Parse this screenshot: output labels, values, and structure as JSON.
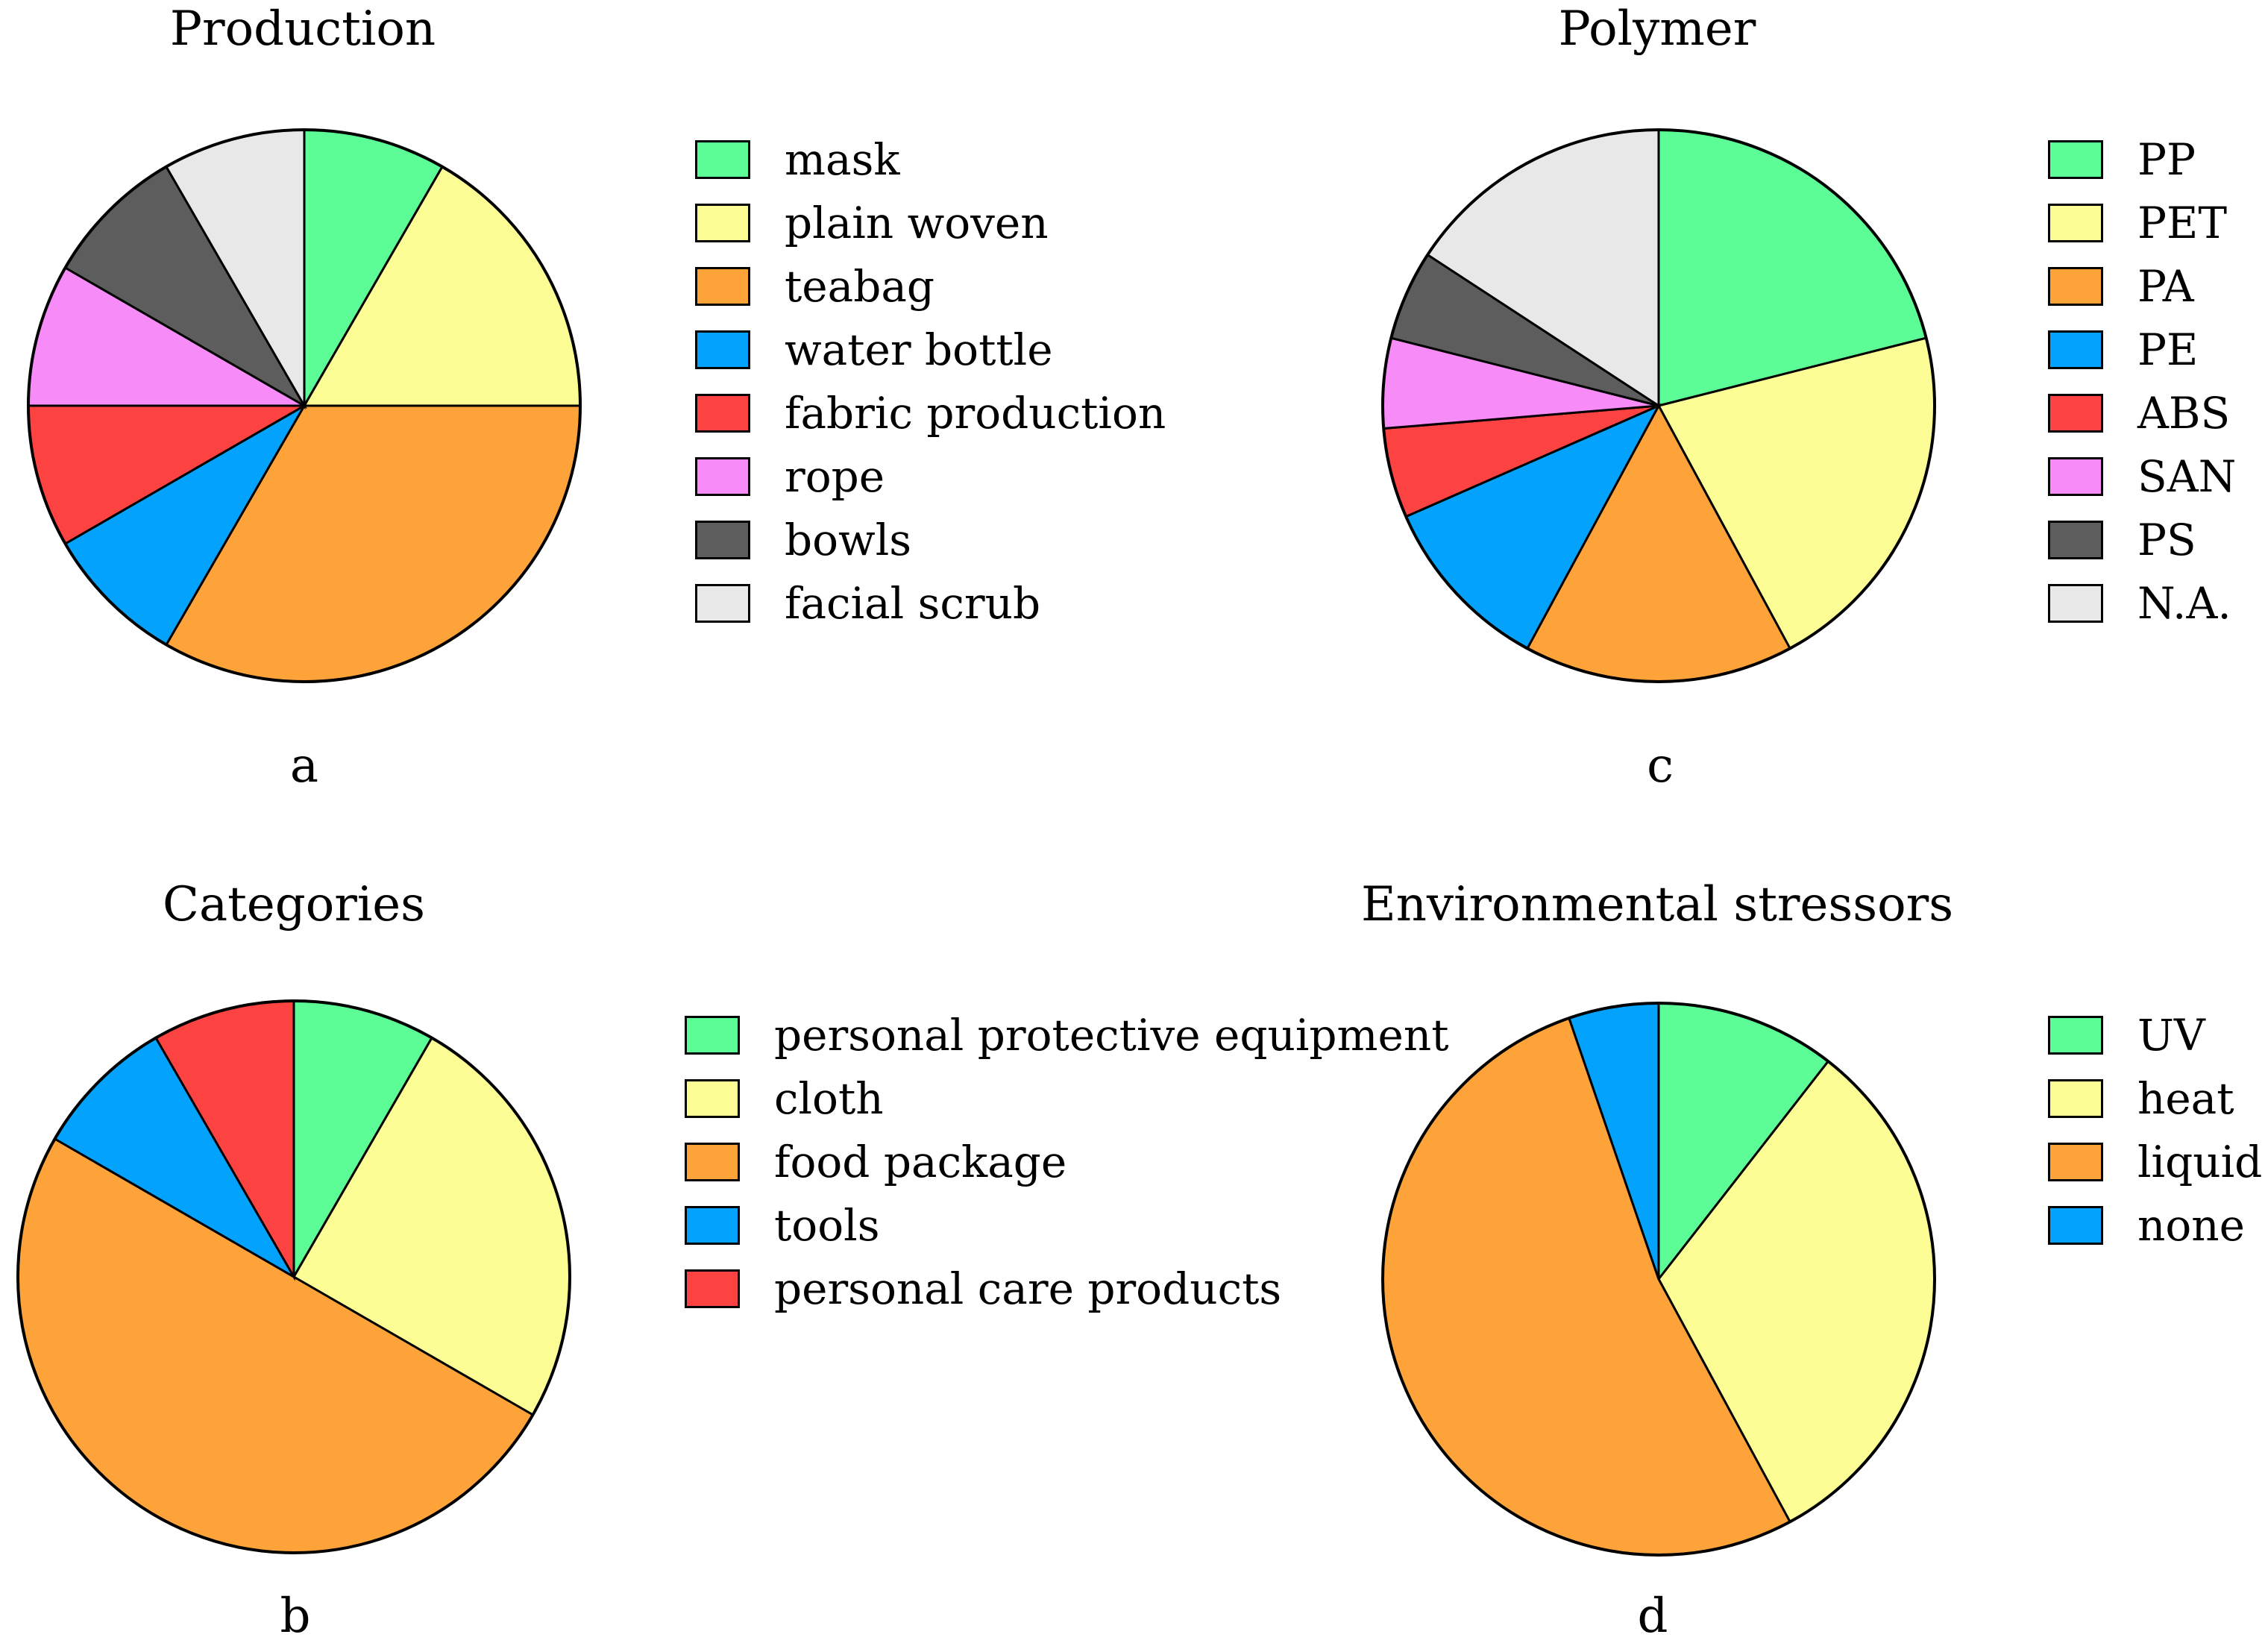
{
  "palette": {
    "green": "#5cfd97",
    "yellow": "#fdfd96",
    "orange": "#fea339",
    "blue": "#03a3fd",
    "red": "#fd4242",
    "pink": "#f78bf7",
    "darkgray": "#5d5d5d",
    "lightgray": "#e8e8e8",
    "stroke": "#000000"
  },
  "chart_data": [
    {
      "id": "a",
      "type": "pie",
      "title": "Production",
      "panel_label": "a",
      "start": "top",
      "direction": "clockwise",
      "categories": [
        "mask",
        "plain woven",
        "teabag",
        "water bottle",
        "fabric production",
        "rope",
        "bowls",
        "facial scrub"
      ],
      "values": [
        1,
        2,
        4,
        1,
        1,
        1,
        1,
        1
      ],
      "colors": [
        "#5cfd97",
        "#fdfd96",
        "#fea339",
        "#03a3fd",
        "#fd4242",
        "#f78bf7",
        "#5d5d5d",
        "#e8e8e8"
      ]
    },
    {
      "id": "b",
      "type": "pie",
      "title": "Categories",
      "panel_label": "b",
      "start": "top",
      "direction": "clockwise",
      "categories": [
        "personal protective equipment",
        "cloth",
        "food package",
        "tools",
        "personal care products"
      ],
      "values": [
        1,
        3,
        6,
        1,
        1
      ],
      "colors": [
        "#5cfd97",
        "#fdfd96",
        "#fea339",
        "#03a3fd",
        "#fd4242"
      ]
    },
    {
      "id": "c",
      "type": "pie",
      "title": "Polymer",
      "panel_label": "c",
      "start": "top",
      "direction": "clockwise",
      "categories": [
        "PP",
        "PET",
        "PA",
        "PE",
        "ABS",
        "SAN",
        "PS",
        "N.A."
      ],
      "values": [
        4,
        4,
        3,
        2,
        1,
        1,
        1,
        3
      ],
      "colors": [
        "#5cfd97",
        "#fdfd96",
        "#fea339",
        "#03a3fd",
        "#fd4242",
        "#f78bf7",
        "#5d5d5d",
        "#e8e8e8"
      ]
    },
    {
      "id": "d",
      "type": "pie",
      "title": "Environmental stressors",
      "panel_label": "d",
      "start": "top",
      "direction": "clockwise",
      "categories": [
        "UV",
        "heat",
        "liquid",
        "none"
      ],
      "values": [
        2,
        6,
        10,
        1
      ],
      "colors": [
        "#5cfd97",
        "#fdfd96",
        "#fea339",
        "#03a3fd"
      ]
    }
  ]
}
